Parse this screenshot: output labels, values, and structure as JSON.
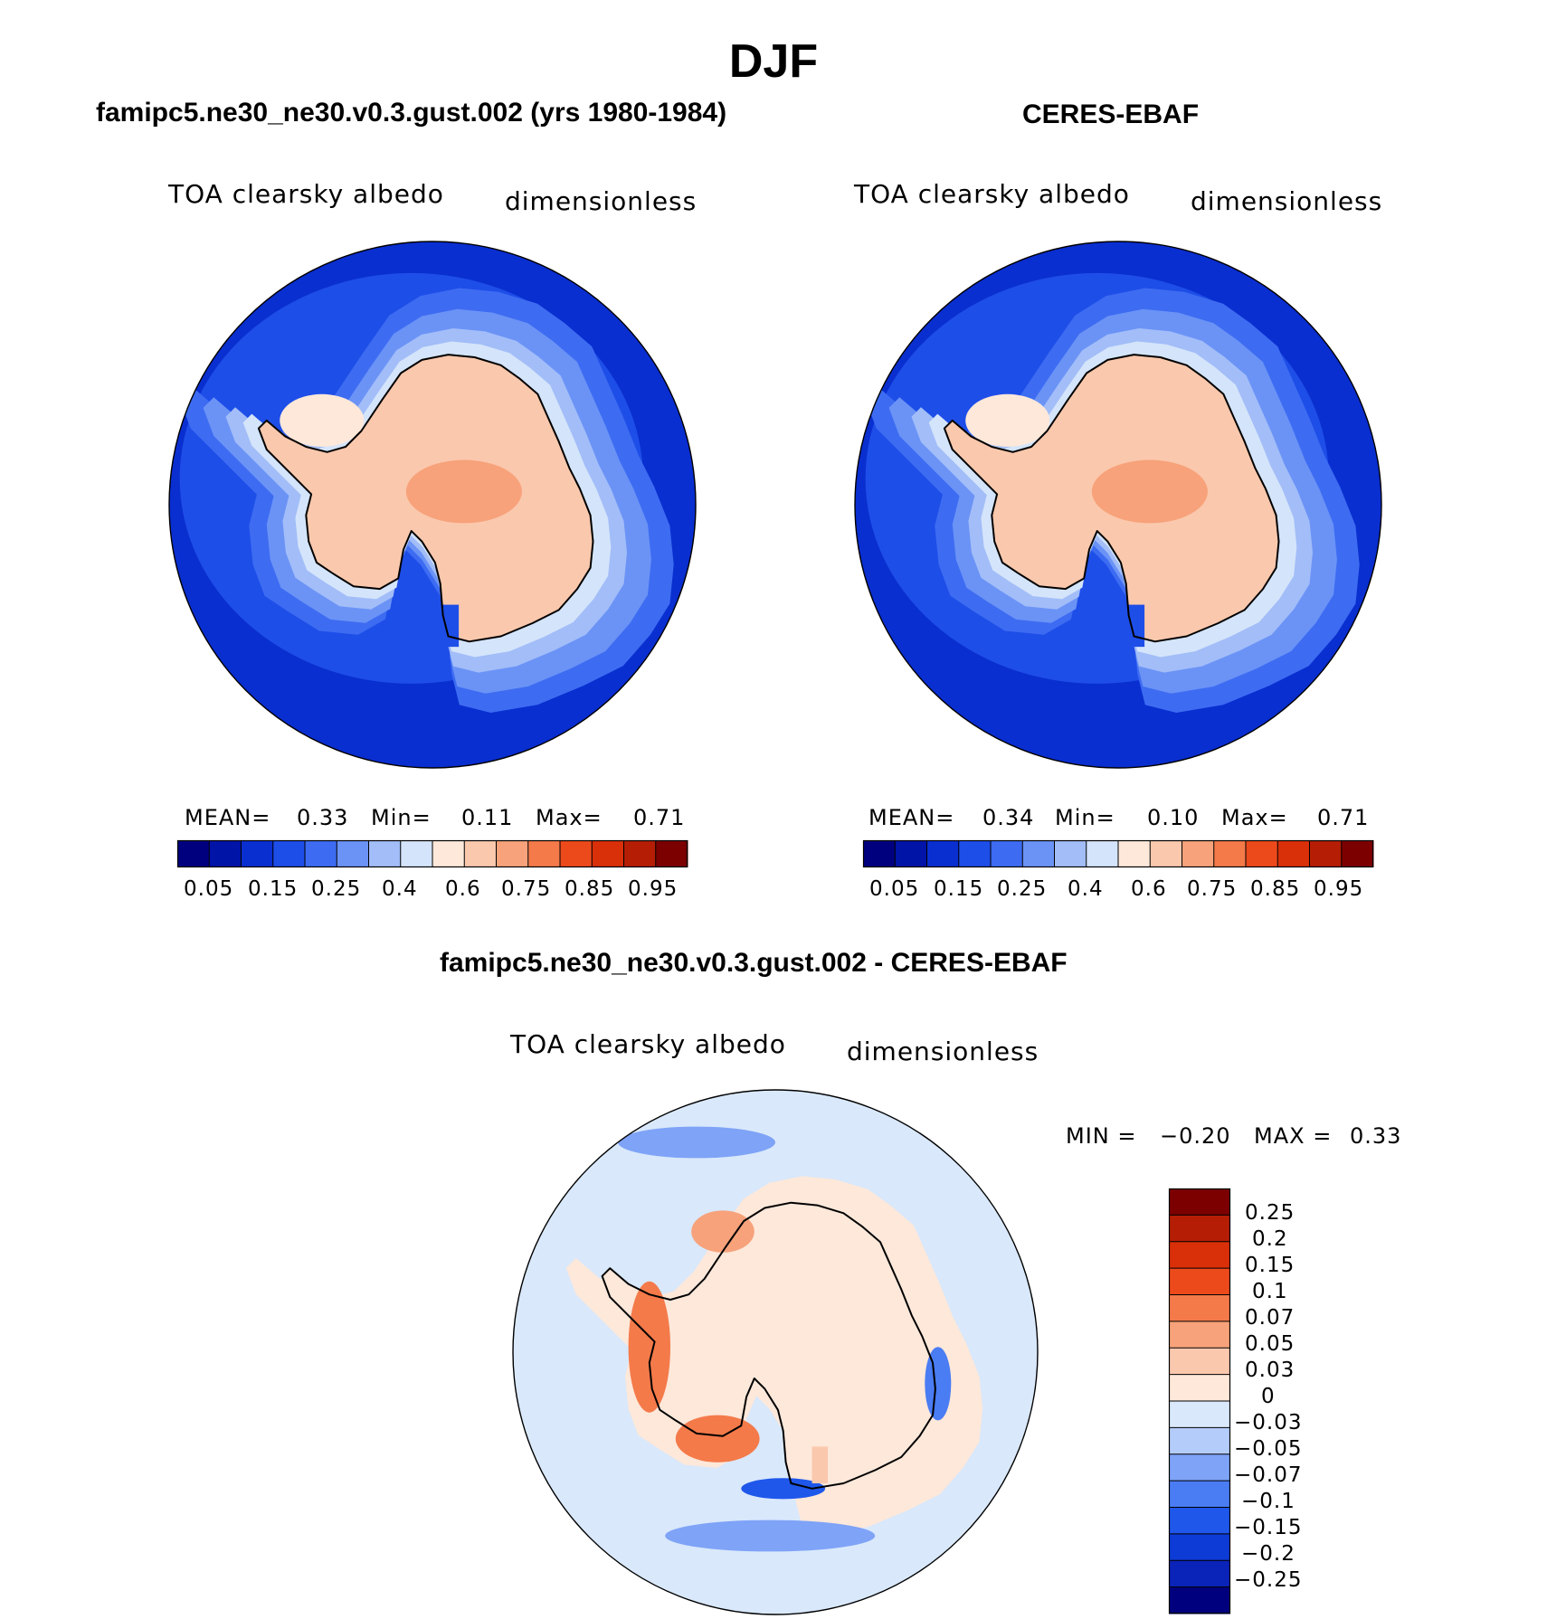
{
  "figure_title": "DJF",
  "palette": {
    "full": [
      "#00007f",
      "#0014a8",
      "#0a2fd0",
      "#1e4ee8",
      "#3d6cf2",
      "#6b93f6",
      "#a2bdf8",
      "#d4e4fa",
      "#fde8da",
      "#fac8ad",
      "#f7a27a",
      "#f47a4a",
      "#ed4a1c",
      "#d93009",
      "#b51e05",
      "#7d0000"
    ],
    "diff": [
      "#00007f",
      "#0a23b8",
      "#0d3bd6",
      "#1f57eb",
      "#4a7cf3",
      "#7ea3f7",
      "#b4ccfa",
      "#d9e8fb",
      "#fde8da",
      "#fac8ad",
      "#f7a27a",
      "#f47a4a",
      "#ed4a1c",
      "#d93009",
      "#b51e05",
      "#7d0000"
    ]
  },
  "panels": [
    {
      "title": "famipc5.ne30_ne30.v0.3.gust.002 (yrs 1980-1984)",
      "variable": "TOA clearsky albedo",
      "units": "dimensionless",
      "mean_label": "MEAN=",
      "mean": "0.33",
      "min_label": "Min=",
      "min": "0.11",
      "max_label": "Max=",
      "max": "0.71",
      "colorbar_ticks": [
        "0.05",
        "0.15",
        "0.25",
        "0.4",
        "0.6",
        "0.75",
        "0.85",
        "0.95"
      ]
    },
    {
      "title": "CERES-EBAF",
      "variable": "TOA clearsky albedo",
      "units": "dimensionless",
      "mean_label": "MEAN=",
      "mean": "0.34",
      "min_label": "Min=",
      "min": "0.10",
      "max_label": "Max=",
      "max": "0.71",
      "colorbar_ticks": [
        "0.05",
        "0.15",
        "0.25",
        "0.4",
        "0.6",
        "0.75",
        "0.85",
        "0.95"
      ]
    },
    {
      "title": "famipc5.ne30_ne30.v0.3.gust.002 - CERES-EBAF",
      "variable": "TOA clearsky albedo",
      "units": "dimensionless",
      "min_label": "MIN =",
      "min": "−0.20",
      "max_label": "MAX =",
      "max": "0.33",
      "colorbar_ticks": [
        "0.25",
        "0.2",
        "0.15",
        "0.1",
        "0.07",
        "0.05",
        "0.03",
        "0",
        "−0.03",
        "−0.05",
        "−0.07",
        "−0.1",
        "−0.15",
        "−0.2",
        "−0.25"
      ]
    }
  ],
  "chart_data": [
    {
      "type": "heatmap",
      "projection": "south-polar-stereographic",
      "title": "famipc5.ne30_ne30.v0.3.gust.002 (yrs 1980-1984)",
      "field": "TOA clearsky albedo",
      "units": "dimensionless",
      "mean": 0.33,
      "min": 0.11,
      "max": 0.71,
      "contour_levels": [
        0.05,
        0.1,
        0.15,
        0.2,
        0.25,
        0.3,
        0.4,
        0.5,
        0.6,
        0.7,
        0.75,
        0.8,
        0.85,
        0.9,
        0.95
      ]
    },
    {
      "type": "heatmap",
      "projection": "south-polar-stereographic",
      "title": "CERES-EBAF",
      "field": "TOA clearsky albedo",
      "units": "dimensionless",
      "mean": 0.34,
      "min": 0.1,
      "max": 0.71,
      "contour_levels": [
        0.05,
        0.1,
        0.15,
        0.2,
        0.25,
        0.3,
        0.4,
        0.5,
        0.6,
        0.7,
        0.75,
        0.8,
        0.85,
        0.9,
        0.95
      ]
    },
    {
      "type": "heatmap",
      "projection": "south-polar-stereographic",
      "title": "famipc5.ne30_ne30.v0.3.gust.002 - CERES-EBAF",
      "field": "TOA clearsky albedo difference",
      "units": "dimensionless",
      "min": -0.2,
      "max": 0.33,
      "contour_levels": [
        -0.25,
        -0.2,
        -0.15,
        -0.1,
        -0.07,
        -0.05,
        -0.03,
        0,
        0.03,
        0.05,
        0.07,
        0.1,
        0.15,
        0.2,
        0.25
      ]
    }
  ]
}
